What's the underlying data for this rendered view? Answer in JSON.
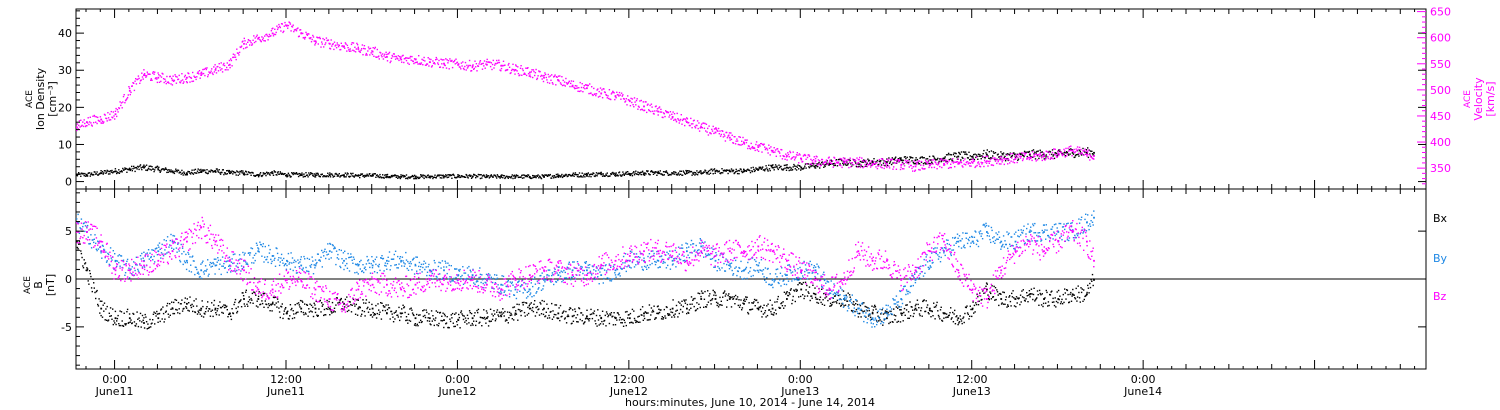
{
  "colors": {
    "axis": "#000000",
    "density": "#000000",
    "velocity": "#ff00ff",
    "bx": "#000000",
    "by": "#1e88e5",
    "bz": "#ff00ff"
  },
  "footer": {
    "xlabel": "hours:minutes, June 10, 2014 - June 14, 2014"
  },
  "chart_data": [
    {
      "type": "scatter",
      "panel": "solar-wind",
      "x_unit": "hours since 2014-06-10 00:00",
      "xlim": [
        21.3,
        115.8
      ],
      "x_ticks": [
        {
          "x": 24,
          "time": "0:00",
          "date": "June11"
        },
        {
          "x": 36,
          "time": "12:00",
          "date": "June11"
        },
        {
          "x": 48,
          "time": "0:00",
          "date": "June12"
        },
        {
          "x": 60,
          "time": "12:00",
          "date": "June12"
        },
        {
          "x": 72,
          "time": "0:00",
          "date": "June13"
        },
        {
          "x": 84,
          "time": "12:00",
          "date": "June13"
        },
        {
          "x": 96,
          "time": "0:00",
          "date": "June14"
        }
      ],
      "left_axis": {
        "label_lines": [
          "ACE",
          "Ion Density",
          "[cm⁻³]"
        ],
        "ylim": [
          -2,
          46.5
        ],
        "ticks": [
          0,
          10,
          20,
          30,
          40
        ]
      },
      "right_axis": {
        "label_lines": [
          "ACE",
          "Velocity",
          "[km/s]"
        ],
        "ylim": [
          310,
          655
        ],
        "ticks": [
          350,
          400,
          450,
          500,
          550,
          600,
          650
        ]
      },
      "series": [
        {
          "key": "density",
          "axis": "left",
          "x": [
            21.3,
            22,
            23,
            24,
            25,
            26,
            27,
            28,
            29,
            30,
            31,
            32,
            33,
            34,
            35,
            36,
            37,
            38,
            39,
            40,
            41,
            42,
            43,
            44,
            45,
            46,
            47,
            48,
            49,
            50,
            51,
            52,
            53,
            54,
            55,
            56,
            57,
            58,
            59,
            60,
            61,
            62,
            63,
            64,
            65,
            66,
            67,
            68,
            69,
            70,
            71,
            72,
            73,
            74,
            75,
            76,
            77,
            78,
            79,
            80,
            81,
            82,
            83,
            84,
            85,
            86,
            87,
            88,
            89,
            90,
            91,
            92,
            92.5
          ],
          "y": [
            2,
            2,
            2.5,
            3,
            3.5,
            4,
            3.5,
            3,
            2.5,
            3,
            3,
            2.5,
            2.5,
            2,
            2.5,
            2,
            2,
            2,
            2,
            2,
            1.8,
            1.8,
            1.6,
            1.5,
            1.5,
            1.5,
            1.6,
            1.6,
            1.6,
            1.5,
            1.5,
            1.5,
            1.5,
            1.5,
            1.8,
            2,
            2,
            2.2,
            2.2,
            2.3,
            2.5,
            2.5,
            2.5,
            2.5,
            2.5,
            3,
            3,
            3,
            3.5,
            4,
            4,
            4,
            4.5,
            5,
            5.5,
            5,
            5.5,
            5.5,
            6,
            6,
            6,
            6.5,
            7,
            7,
            7.5,
            7,
            7,
            7.5,
            7.5,
            7.5,
            8,
            8,
            8
          ]
        },
        {
          "key": "velocity",
          "axis": "right",
          "x": [
            21.3,
            22,
            23,
            24,
            25,
            26,
            27,
            28,
            29,
            30,
            31,
            32,
            33,
            34,
            35,
            36,
            37,
            38,
            39,
            40,
            41,
            42,
            43,
            44,
            45,
            46,
            47,
            48,
            49,
            50,
            51,
            52,
            53,
            54,
            55,
            56,
            57,
            58,
            59,
            60,
            61,
            62,
            63,
            64,
            65,
            66,
            67,
            68,
            69,
            70,
            71,
            72,
            73,
            74,
            75,
            76,
            77,
            78,
            79,
            80,
            81,
            82,
            83,
            84,
            85,
            86,
            87,
            88,
            89,
            90,
            91,
            92,
            92.5
          ],
          "y": [
            430,
            440,
            445,
            455,
            500,
            530,
            525,
            520,
            525,
            530,
            540,
            550,
            590,
            600,
            610,
            625,
            610,
            595,
            590,
            585,
            580,
            575,
            565,
            560,
            560,
            555,
            552,
            550,
            547,
            550,
            548,
            540,
            535,
            525,
            520,
            510,
            505,
            495,
            490,
            480,
            470,
            460,
            450,
            440,
            430,
            420,
            410,
            400,
            392,
            385,
            375,
            370,
            365,
            363,
            362,
            362,
            360,
            360,
            358,
            355,
            357,
            360,
            360,
            362,
            365,
            368,
            370,
            372,
            375,
            380,
            385,
            378,
            375
          ]
        }
      ]
    },
    {
      "type": "scatter",
      "panel": "imf",
      "x_unit": "hours since 2014-06-10 00:00",
      "xlim": [
        21.3,
        115.8
      ],
      "left_axis": {
        "label_lines": [
          "ACE",
          "B",
          "[nT]"
        ],
        "ylim": [
          -9.4,
          9.4
        ],
        "ticks": [
          -5,
          0,
          5
        ]
      },
      "zero_line": 0,
      "series": [
        {
          "key": "bx",
          "name": "Bx",
          "x": [
            21.3,
            22,
            23,
            24,
            25,
            26,
            27,
            28,
            29,
            30,
            31,
            32,
            33,
            34,
            35,
            36,
            37,
            38,
            39,
            40,
            41,
            42,
            43,
            44,
            45,
            46,
            47,
            48,
            49,
            50,
            51,
            52,
            53,
            54,
            55,
            56,
            57,
            58,
            59,
            60,
            61,
            62,
            63,
            64,
            65,
            66,
            67,
            68,
            69,
            70,
            71,
            72,
            73,
            74,
            75,
            76,
            77,
            78,
            79,
            80,
            81,
            82,
            83,
            84,
            85,
            86,
            87,
            88,
            89,
            90,
            91,
            92,
            92.5
          ],
          "y": [
            4,
            1,
            -3,
            -4,
            -4,
            -4.5,
            -4,
            -3,
            -2.5,
            -3,
            -3,
            -3.5,
            -2,
            -2,
            -2.5,
            -3.5,
            -3,
            -3,
            -3,
            -2.5,
            -3,
            -3,
            -3.5,
            -3.5,
            -4,
            -4,
            -4.2,
            -4.2,
            -4,
            -4,
            -3.8,
            -3.5,
            -3,
            -3,
            -3.5,
            -3.8,
            -3.8,
            -4,
            -4,
            -4,
            -3.5,
            -3.5,
            -3,
            -3,
            -2,
            -2,
            -2,
            -2.5,
            -3,
            -3,
            -2,
            -1,
            -1.5,
            -2,
            -2,
            -3,
            -3.5,
            -4,
            -3.5,
            -3,
            -3,
            -3.5,
            -4,
            -3,
            -1,
            -2,
            -2,
            -1.5,
            -2,
            -2,
            -1.5,
            -1.5,
            0
          ]
        },
        {
          "key": "by",
          "name": "By",
          "x": [
            21.3,
            22,
            23,
            24,
            25,
            26,
            27,
            28,
            29,
            30,
            31,
            32,
            33,
            34,
            35,
            36,
            37,
            38,
            39,
            40,
            41,
            42,
            43,
            44,
            45,
            46,
            47,
            48,
            49,
            50,
            51,
            52,
            53,
            54,
            55,
            56,
            57,
            58,
            59,
            60,
            61,
            62,
            63,
            64,
            65,
            66,
            67,
            68,
            69,
            70,
            71,
            72,
            73,
            74,
            75,
            76,
            77,
            78,
            79,
            80,
            81,
            82,
            83,
            84,
            85,
            86,
            87,
            88,
            89,
            90,
            91,
            92,
            92.5
          ],
          "y": [
            6,
            5,
            3,
            2,
            1,
            2,
            3,
            4,
            2,
            1,
            1.5,
            1.5,
            2,
            3,
            2.5,
            2,
            1.5,
            1.5,
            3,
            2,
            1.5,
            1.5,
            2,
            2,
            1.5,
            1,
            1,
            0.5,
            0.5,
            0,
            -0.5,
            -1,
            -1,
            0,
            0.5,
            1,
            1,
            0.5,
            1,
            2,
            2,
            2,
            2,
            3,
            3.5,
            2,
            1.5,
            1,
            1.5,
            0,
            0.5,
            1,
            1,
            -1,
            -2,
            -3,
            -4,
            -3.5,
            -2,
            0,
            2,
            3,
            4,
            4,
            5,
            4,
            4,
            5,
            5,
            5,
            5,
            6,
            6.5
          ]
        },
        {
          "key": "bz",
          "name": "Bz",
          "x": [
            21.3,
            22,
            23,
            24,
            25,
            26,
            27,
            28,
            29,
            30,
            31,
            32,
            33,
            34,
            35,
            36,
            37,
            38,
            39,
            40,
            41,
            42,
            43,
            44,
            45,
            46,
            47,
            48,
            49,
            50,
            51,
            52,
            53,
            54,
            55,
            56,
            57,
            58,
            59,
            60,
            61,
            62,
            63,
            64,
            65,
            66,
            67,
            68,
            69,
            70,
            71,
            72,
            73,
            74,
            75,
            76,
            77,
            78,
            79,
            80,
            81,
            82,
            83,
            84,
            85,
            86,
            87,
            88,
            89,
            90,
            91,
            92,
            92.5
          ],
          "y": [
            5,
            5,
            4,
            1,
            1,
            1.5,
            2,
            3,
            4,
            5.5,
            4,
            2,
            1,
            -1,
            -1,
            0,
            0,
            -1,
            -2,
            -3,
            -1,
            -0.5,
            -0.5,
            -1,
            -0.5,
            0,
            0,
            0,
            0,
            -0.5,
            -1,
            0,
            0.5,
            1,
            1,
            0.5,
            0.5,
            1.5,
            2,
            2.5,
            3,
            3,
            3,
            2,
            3,
            2.5,
            3,
            3,
            3.5,
            3,
            2,
            1,
            0,
            -1,
            0,
            3,
            2,
            2,
            0,
            1,
            3,
            4,
            1,
            -1,
            -2,
            1,
            3,
            4,
            3,
            4,
            5,
            4,
            2
          ]
        }
      ]
    }
  ]
}
